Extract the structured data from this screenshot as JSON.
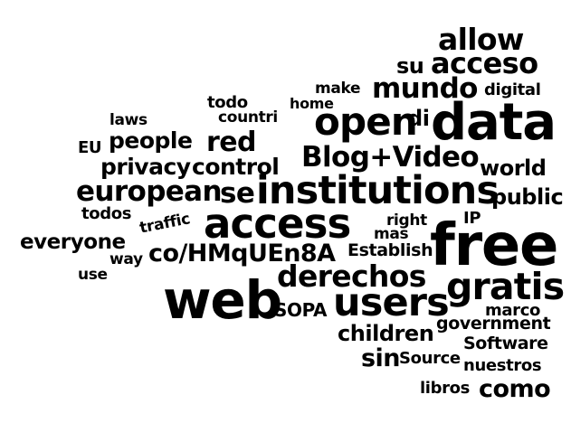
{
  "words": [
    {
      "text": "allow",
      "name": "word-allow"
    },
    {
      "text": "su",
      "name": "word-su"
    },
    {
      "text": "acceso",
      "name": "word-acceso"
    },
    {
      "text": "make",
      "name": "word-make"
    },
    {
      "text": "mundo",
      "name": "word-mundo"
    },
    {
      "text": "digital",
      "name": "word-digital"
    },
    {
      "text": "todo",
      "name": "word-todo"
    },
    {
      "text": "home",
      "name": "word-home"
    },
    {
      "text": "laws",
      "name": "word-laws"
    },
    {
      "text": "countri",
      "name": "word-countri"
    },
    {
      "text": "open",
      "name": "word-open"
    },
    {
      "text": "di",
      "name": "word-di"
    },
    {
      "text": "data",
      "name": "word-data"
    },
    {
      "text": "people",
      "name": "word-people"
    },
    {
      "text": "EU",
      "name": "word-eu"
    },
    {
      "text": "red",
      "name": "word-red"
    },
    {
      "text": "Blog+Video",
      "name": "word-blog-video"
    },
    {
      "text": "privacy",
      "name": "word-privacy"
    },
    {
      "text": "control",
      "name": "word-control"
    },
    {
      "text": "world",
      "name": "word-world"
    },
    {
      "text": "european",
      "name": "word-european"
    },
    {
      "text": "se",
      "name": "word-se"
    },
    {
      "text": "institutions",
      "name": "word-institutions"
    },
    {
      "text": "public",
      "name": "word-public"
    },
    {
      "text": "todos",
      "name": "word-todos"
    },
    {
      "text": "traffic",
      "name": "word-traffic"
    },
    {
      "text": "access",
      "name": "word-access"
    },
    {
      "text": "right",
      "name": "word-right"
    },
    {
      "text": "IP",
      "name": "word-ip"
    },
    {
      "text": "everyone",
      "name": "word-everyone"
    },
    {
      "text": "mas",
      "name": "word-mas"
    },
    {
      "text": "free",
      "name": "word-free"
    },
    {
      "text": "way",
      "name": "word-way"
    },
    {
      "text": "co/HMqUEn8A",
      "name": "word-co-hmquen8a"
    },
    {
      "text": "Establish",
      "name": "word-establish"
    },
    {
      "text": "use",
      "name": "word-use"
    },
    {
      "text": "derechos",
      "name": "word-derechos"
    },
    {
      "text": "web",
      "name": "word-web"
    },
    {
      "text": "gratis",
      "name": "word-gratis"
    },
    {
      "text": "SOPA",
      "name": "word-sopa"
    },
    {
      "text": "users",
      "name": "word-users"
    },
    {
      "text": "marco",
      "name": "word-marco"
    },
    {
      "text": "children",
      "name": "word-children"
    },
    {
      "text": "government",
      "name": "word-government"
    },
    {
      "text": "Software",
      "name": "word-software"
    },
    {
      "text": "sin",
      "name": "word-sin"
    },
    {
      "text": "Source",
      "name": "word-source"
    },
    {
      "text": "nuestros",
      "name": "word-nuestros"
    },
    {
      "text": "libros",
      "name": "word-libros"
    },
    {
      "text": "como",
      "name": "word-como"
    }
  ]
}
